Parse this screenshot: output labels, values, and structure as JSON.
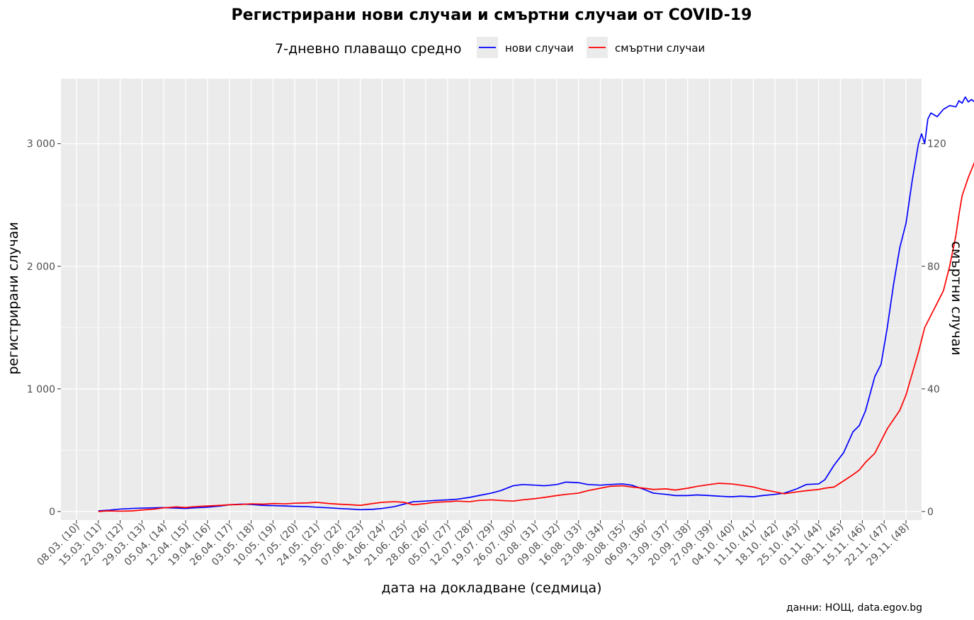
{
  "chart_data": {
    "type": "line",
    "title": "Регистрирани нови случаи и смъртни случаи от COVID-19",
    "legend": {
      "title": "7-дневно плаващо средно",
      "position": "top",
      "entries": [
        {
          "label": "нови случаи",
          "color": "#0000ff"
        },
        {
          "label": "смъртни случаи",
          "color": "#ff0000"
        }
      ]
    },
    "xlabel": "дата на докладване (седмица)",
    "ylabel": "регистрирани случаи",
    "y2label": "смъртни случаи",
    "caption": "данни: НОЩ, data.egov.bg",
    "grid": true,
    "x_ticks": [
      "08.03. (10)",
      "15.03. (11)",
      "22.03. (12)",
      "29.03. (13)",
      "05.04. (14)",
      "12.04. (15)",
      "19.04. (16)",
      "26.04. (17)",
      "03.05. (18)",
      "10.05. (19)",
      "17.05. (20)",
      "24.05. (21)",
      "31.05. (22)",
      "07.06. (23)",
      "14.06. (24)",
      "21.06. (25)",
      "28.06. (26)",
      "05.07. (27)",
      "12.07. (28)",
      "19.07. (29)",
      "26.07. (30)",
      "02.08. (31)",
      "09.08. (32)",
      "16.08. (33)",
      "23.08. (34)",
      "30.08. (35)",
      "06.09. (36)",
      "13.09. (37)",
      "20.09. (38)",
      "27.09. (39)",
      "04.10. (40)",
      "11.10. (41)",
      "18.10. (42)",
      "25.10. (43)",
      "01.11. (44)",
      "08.11. (45)",
      "15.11. (46)",
      "22.11. (47)",
      "29.11. (48)"
    ],
    "x_range_days": [
      -5,
      271
    ],
    "y_left": {
      "range": [
        -70,
        3530
      ],
      "ticks": [
        0,
        1000,
        2000,
        3000
      ],
      "tick_labels": [
        "0",
        "1 000",
        "2 000",
        "3 000"
      ]
    },
    "y_right": {
      "range": [
        -2.8,
        141.2
      ],
      "ticks": [
        0,
        40,
        80,
        120
      ],
      "tick_labels": [
        "0",
        "40",
        "80",
        "120"
      ]
    },
    "series": [
      {
        "name": "нови случаи",
        "axis": "left",
        "color": "#0000ff",
        "points": [
          [
            7,
            5
          ],
          [
            10,
            10
          ],
          [
            14,
            20
          ],
          [
            18,
            25
          ],
          [
            21,
            28
          ],
          [
            25,
            30
          ],
          [
            28,
            32
          ],
          [
            32,
            28
          ],
          [
            35,
            25
          ],
          [
            38,
            30
          ],
          [
            42,
            35
          ],
          [
            46,
            45
          ],
          [
            49,
            55
          ],
          [
            53,
            60
          ],
          [
            56,
            58
          ],
          [
            60,
            50
          ],
          [
            63,
            48
          ],
          [
            67,
            45
          ],
          [
            70,
            42
          ],
          [
            74,
            40
          ],
          [
            77,
            35
          ],
          [
            81,
            30
          ],
          [
            84,
            25
          ],
          [
            88,
            20
          ],
          [
            91,
            15
          ],
          [
            95,
            18
          ],
          [
            98,
            25
          ],
          [
            102,
            40
          ],
          [
            105,
            60
          ],
          [
            108,
            80
          ],
          [
            112,
            85
          ],
          [
            115,
            90
          ],
          [
            119,
            95
          ],
          [
            122,
            100
          ],
          [
            126,
            115
          ],
          [
            129,
            130
          ],
          [
            133,
            150
          ],
          [
            136,
            170
          ],
          [
            140,
            210
          ],
          [
            143,
            220
          ],
          [
            147,
            215
          ],
          [
            150,
            210
          ],
          [
            154,
            220
          ],
          [
            157,
            240
          ],
          [
            161,
            235
          ],
          [
            164,
            220
          ],
          [
            168,
            215
          ],
          [
            171,
            220
          ],
          [
            175,
            225
          ],
          [
            178,
            215
          ],
          [
            182,
            180
          ],
          [
            185,
            150
          ],
          [
            189,
            140
          ],
          [
            192,
            130
          ],
          [
            196,
            130
          ],
          [
            199,
            135
          ],
          [
            203,
            130
          ],
          [
            206,
            125
          ],
          [
            210,
            120
          ],
          [
            213,
            125
          ],
          [
            217,
            120
          ],
          [
            220,
            130
          ],
          [
            224,
            140
          ],
          [
            227,
            150
          ],
          [
            231,
            185
          ],
          [
            234,
            220
          ],
          [
            238,
            225
          ],
          [
            240,
            260
          ],
          [
            243,
            380
          ],
          [
            246,
            480
          ],
          [
            249,
            650
          ],
          [
            251,
            700
          ],
          [
            253,
            820
          ],
          [
            256,
            1100
          ],
          [
            258,
            1200
          ],
          [
            260,
            1500
          ],
          [
            262,
            1850
          ],
          [
            264,
            2150
          ],
          [
            266,
            2350
          ],
          [
            268,
            2700
          ],
          [
            270,
            3000
          ],
          [
            271,
            3080
          ],
          [
            272,
            3000
          ],
          [
            273,
            3200
          ],
          [
            274,
            3250
          ],
          [
            276,
            3220
          ],
          [
            278,
            3280
          ],
          [
            280,
            3310
          ],
          [
            282,
            3300
          ],
          [
            283,
            3350
          ],
          [
            284,
            3330
          ],
          [
            285,
            3380
          ],
          [
            286,
            3340
          ],
          [
            287,
            3360
          ],
          [
            289,
            3320
          ],
          [
            290,
            3280
          ],
          [
            292,
            3200
          ],
          [
            294,
            3100
          ],
          [
            295,
            3010
          ]
        ]
      },
      {
        "name": "смъртни случаи",
        "axis": "right",
        "color": "#ff0000",
        "points": [
          [
            7,
            0
          ],
          [
            10,
            0.2
          ],
          [
            14,
            0.1
          ],
          [
            18,
            0.2
          ],
          [
            21,
            0.5
          ],
          [
            25,
            0.8
          ],
          [
            28,
            1.2
          ],
          [
            32,
            1.5
          ],
          [
            35,
            1.3
          ],
          [
            38,
            1.6
          ],
          [
            42,
            1.8
          ],
          [
            46,
            2.0
          ],
          [
            49,
            2.2
          ],
          [
            53,
            2.3
          ],
          [
            56,
            2.5
          ],
          [
            60,
            2.4
          ],
          [
            63,
            2.6
          ],
          [
            67,
            2.5
          ],
          [
            70,
            2.7
          ],
          [
            74,
            2.8
          ],
          [
            77,
            3.0
          ],
          [
            81,
            2.6
          ],
          [
            84,
            2.4
          ],
          [
            88,
            2.2
          ],
          [
            91,
            2.0
          ],
          [
            95,
            2.6
          ],
          [
            98,
            3.0
          ],
          [
            102,
            3.2
          ],
          [
            105,
            3.0
          ],
          [
            108,
            2.2
          ],
          [
            112,
            2.6
          ],
          [
            115,
            3.0
          ],
          [
            119,
            3.2
          ],
          [
            122,
            3.4
          ],
          [
            126,
            3.2
          ],
          [
            129,
            3.6
          ],
          [
            133,
            3.8
          ],
          [
            136,
            3.6
          ],
          [
            140,
            3.4
          ],
          [
            143,
            3.8
          ],
          [
            147,
            4.2
          ],
          [
            150,
            4.6
          ],
          [
            154,
            5.2
          ],
          [
            157,
            5.6
          ],
          [
            161,
            6.0
          ],
          [
            164,
            6.8
          ],
          [
            168,
            7.6
          ],
          [
            171,
            8.2
          ],
          [
            175,
            8.4
          ],
          [
            178,
            8.0
          ],
          [
            182,
            7.6
          ],
          [
            185,
            7.2
          ],
          [
            189,
            7.4
          ],
          [
            192,
            7.0
          ],
          [
            196,
            7.6
          ],
          [
            199,
            8.2
          ],
          [
            203,
            8.8
          ],
          [
            206,
            9.2
          ],
          [
            210,
            9.0
          ],
          [
            213,
            8.6
          ],
          [
            217,
            8.0
          ],
          [
            220,
            7.2
          ],
          [
            224,
            6.4
          ],
          [
            227,
            5.8
          ],
          [
            231,
            6.4
          ],
          [
            234,
            6.8
          ],
          [
            238,
            7.2
          ],
          [
            240,
            7.6
          ],
          [
            243,
            8.0
          ],
          [
            246,
            10.0
          ],
          [
            249,
            12.0
          ],
          [
            251,
            13.5
          ],
          [
            253,
            16.0
          ],
          [
            256,
            19.0
          ],
          [
            258,
            23.0
          ],
          [
            260,
            27.0
          ],
          [
            262,
            30.0
          ],
          [
            264,
            33.0
          ],
          [
            266,
            38.0
          ],
          [
            268,
            45.0
          ],
          [
            270,
            52.0
          ],
          [
            271,
            56.0
          ],
          [
            272,
            60.0
          ],
          [
            274,
            64.0
          ],
          [
            276,
            68.0
          ],
          [
            278,
            72.0
          ],
          [
            280,
            80.0
          ],
          [
            282,
            90.0
          ],
          [
            283,
            97.0
          ],
          [
            284,
            103.0
          ],
          [
            286,
            109.0
          ],
          [
            288,
            114.0
          ],
          [
            290,
            119.0
          ],
          [
            292,
            125.0
          ],
          [
            294,
            131.0
          ],
          [
            295,
            133.0
          ]
        ]
      }
    ]
  }
}
